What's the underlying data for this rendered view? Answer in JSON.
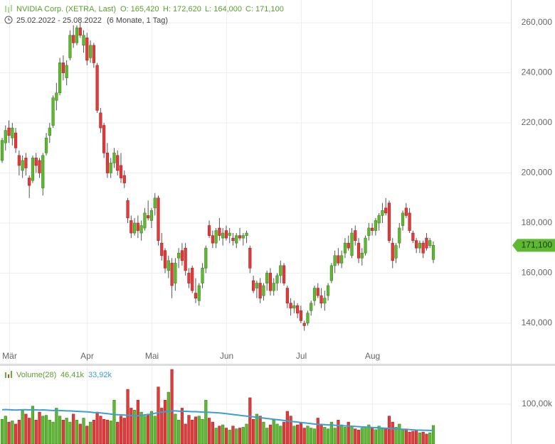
{
  "chart_data": {
    "type": "candlestick",
    "title": "NVIDIA Corp. (XETRA, Last)",
    "ohlc_summary": [
      "O: 165,420",
      "H: 172,620",
      "L: 164,000",
      "C: 171,100"
    ],
    "date_range": "25.02.2022 - 25.08.2022",
    "period": "(6 Monate, 1 Tag)",
    "last_price_label": "171,100",
    "up_color": "#5fb832",
    "down_color": "#e23b3b",
    "grid": true,
    "ylim": [
      123800,
      269100
    ],
    "yticks": [
      {
        "value": 140000,
        "label": "140,000"
      },
      {
        "value": 160000,
        "label": "160,000"
      },
      {
        "value": 180000,
        "label": "180,000"
      },
      {
        "value": 200000,
        "label": "200,000"
      },
      {
        "value": 220000,
        "label": "220,000"
      },
      {
        "value": 240000,
        "label": "240,000"
      },
      {
        "value": 260000,
        "label": "260,000"
      }
    ],
    "categories": [
      null,
      null,
      "Mär",
      null,
      null,
      null,
      null,
      null,
      null,
      null,
      null,
      null,
      null,
      null,
      null,
      null,
      null,
      null,
      null,
      null,
      null,
      null,
      null,
      null,
      null,
      "Apr",
      null,
      null,
      null,
      null,
      null,
      null,
      null,
      null,
      null,
      null,
      null,
      null,
      null,
      null,
      null,
      null,
      null,
      null,
      "Mai",
      null,
      null,
      null,
      null,
      null,
      null,
      null,
      null,
      null,
      null,
      null,
      null,
      null,
      null,
      null,
      null,
      null,
      null,
      null,
      null,
      null,
      "Jun",
      null,
      null,
      null,
      null,
      null,
      null,
      null,
      null,
      null,
      null,
      null,
      null,
      null,
      null,
      null,
      null,
      null,
      null,
      null,
      null,
      null,
      "Jul",
      null,
      null,
      null,
      null,
      null,
      null,
      null,
      null,
      null,
      null,
      null,
      null,
      null,
      null,
      null,
      null,
      null,
      null,
      null,
      null,
      "Aug",
      null,
      null,
      null,
      null,
      null,
      null,
      null,
      null,
      null,
      null,
      null,
      null,
      null,
      null,
      null,
      null,
      null
    ],
    "ohlc": [
      [
        205000,
        214000,
        204000,
        213000
      ],
      [
        212000,
        219000,
        209000,
        217000
      ],
      [
        218000,
        221000,
        212000,
        215000
      ],
      [
        214000,
        220000,
        211000,
        218000
      ],
      [
        216000,
        218000,
        208000,
        210000
      ],
      [
        207000,
        209000,
        199000,
        203000
      ],
      [
        201000,
        207000,
        198000,
        205000
      ],
      [
        206000,
        208000,
        199000,
        202000
      ],
      [
        198000,
        199000,
        190000,
        195000
      ],
      [
        197000,
        207000,
        196000,
        206000
      ],
      [
        206000,
        208000,
        200000,
        203000
      ],
      [
        205000,
        206000,
        198000,
        200000
      ],
      [
        194000,
        208000,
        191000,
        207000
      ],
      [
        208000,
        216000,
        207000,
        214000
      ],
      [
        215000,
        220000,
        212000,
        218000
      ],
      [
        219000,
        231000,
        218000,
        230000
      ],
      [
        229000,
        236000,
        225000,
        232000
      ],
      [
        232000,
        246000,
        231000,
        244000
      ],
      [
        244000,
        247000,
        237000,
        240000
      ],
      [
        238000,
        245000,
        235000,
        243000
      ],
      [
        246000,
        257000,
        245000,
        255000
      ],
      [
        255000,
        259000,
        250000,
        252000
      ],
      [
        252000,
        259000,
        251000,
        258000
      ],
      [
        258000,
        260000,
        254000,
        255000
      ],
      [
        251000,
        257000,
        248000,
        255000
      ],
      [
        254000,
        256000,
        243000,
        245000
      ],
      [
        246000,
        253000,
        244000,
        251000
      ],
      [
        251000,
        252000,
        242000,
        244000
      ],
      [
        243000,
        244000,
        224000,
        225000
      ],
      [
        224000,
        226000,
        216000,
        218000
      ],
      [
        219000,
        220000,
        206000,
        208000
      ],
      [
        208000,
        212000,
        198000,
        200000
      ],
      [
        200000,
        206000,
        198000,
        204000
      ],
      [
        204000,
        210000,
        202000,
        208000
      ],
      [
        207000,
        209000,
        199000,
        201000
      ],
      [
        203000,
        208000,
        196000,
        198000
      ],
      [
        199000,
        201000,
        194000,
        196000
      ],
      [
        189000,
        190000,
        180000,
        182000
      ],
      [
        181000,
        183000,
        174000,
        176000
      ],
      [
        176000,
        182000,
        175000,
        180000
      ],
      [
        180000,
        183000,
        174000,
        177000
      ],
      [
        176000,
        181000,
        173000,
        179000
      ],
      [
        178000,
        186000,
        177000,
        184000
      ],
      [
        183000,
        189000,
        181000,
        182000
      ],
      [
        181000,
        186000,
        178000,
        185000
      ],
      [
        186000,
        192000,
        183000,
        190000
      ],
      [
        190000,
        191000,
        171000,
        173000
      ],
      [
        172000,
        176000,
        165000,
        167000
      ],
      [
        169000,
        170000,
        160000,
        162000
      ],
      [
        161000,
        167000,
        158000,
        165000
      ],
      [
        164000,
        166000,
        150000,
        155000
      ],
      [
        156000,
        166000,
        153000,
        164000
      ],
      [
        166000,
        170000,
        162000,
        168000
      ],
      [
        169000,
        172000,
        163000,
        165000
      ],
      [
        170000,
        172000,
        159000,
        161000
      ],
      [
        160000,
        162000,
        154000,
        156000
      ],
      [
        162000,
        163000,
        152000,
        153000
      ],
      [
        152000,
        158000,
        148000,
        150000
      ],
      [
        149000,
        156000,
        147000,
        155000
      ],
      [
        156000,
        164000,
        154000,
        162000
      ],
      [
        162000,
        171000,
        160000,
        170000
      ],
      [
        179000,
        181000,
        174000,
        175000
      ],
      [
        175000,
        177000,
        170000,
        172000
      ],
      [
        172000,
        178000,
        170000,
        177000
      ],
      [
        178000,
        182000,
        173000,
        175000
      ],
      [
        174000,
        178000,
        171000,
        176000
      ],
      [
        177000,
        179000,
        173000,
        174000
      ],
      [
        175000,
        178000,
        172000,
        176000
      ],
      [
        174000,
        176000,
        171000,
        173000
      ],
      [
        172000,
        176000,
        170000,
        175000
      ],
      [
        175000,
        178000,
        173000,
        174000
      ],
      [
        174000,
        176000,
        171000,
        175000
      ],
      [
        175000,
        177000,
        172000,
        176000
      ],
      [
        170000,
        171000,
        160000,
        162000
      ],
      [
        157000,
        159000,
        152000,
        153000
      ],
      [
        154000,
        157000,
        150000,
        156000
      ],
      [
        156000,
        158000,
        148000,
        150000
      ],
      [
        151000,
        156000,
        149000,
        155000
      ],
      [
        156000,
        161000,
        153000,
        160000
      ],
      [
        160000,
        162000,
        151000,
        153000
      ],
      [
        153000,
        158000,
        151000,
        156000
      ],
      [
        156000,
        160000,
        153000,
        159000
      ],
      [
        159000,
        165000,
        156000,
        163000
      ],
      [
        163000,
        164000,
        155000,
        156000
      ],
      [
        154000,
        155000,
        146000,
        148000
      ],
      [
        148000,
        150000,
        143000,
        146000
      ],
      [
        146000,
        149000,
        144000,
        147000
      ],
      [
        147000,
        148000,
        142000,
        144000
      ],
      [
        145000,
        147000,
        140000,
        141000
      ],
      [
        140000,
        141000,
        137000,
        139000
      ],
      [
        140000,
        145000,
        139000,
        144000
      ],
      [
        145000,
        149000,
        143000,
        148000
      ],
      [
        149000,
        155000,
        147000,
        154000
      ],
      [
        154000,
        156000,
        150000,
        151000
      ],
      [
        151000,
        154000,
        146000,
        148000
      ],
      [
        148000,
        153000,
        145000,
        150000
      ],
      [
        151000,
        156000,
        149000,
        155000
      ],
      [
        157000,
        164000,
        156000,
        163000
      ],
      [
        163000,
        169000,
        160000,
        167000
      ],
      [
        167000,
        170000,
        163000,
        164000
      ],
      [
        164000,
        169000,
        162000,
        167000
      ],
      [
        168000,
        174000,
        166000,
        172000
      ],
      [
        172000,
        175000,
        169000,
        170000
      ],
      [
        167000,
        178000,
        166000,
        176000
      ],
      [
        177000,
        179000,
        171000,
        173000
      ],
      [
        172000,
        174000,
        164000,
        166000
      ],
      [
        166000,
        170000,
        163000,
        168000
      ],
      [
        168000,
        175000,
        167000,
        174000
      ],
      [
        175000,
        180000,
        173000,
        178000
      ],
      [
        178000,
        180000,
        175000,
        177000
      ],
      [
        177000,
        182000,
        175000,
        181000
      ],
      [
        180000,
        184000,
        177000,
        183000
      ],
      [
        183000,
        188000,
        180000,
        185000
      ],
      [
        186000,
        190000,
        183000,
        184000
      ],
      [
        188000,
        189000,
        172000,
        173000
      ],
      [
        172000,
        174000,
        162000,
        165000
      ],
      [
        166000,
        172000,
        164000,
        171000
      ],
      [
        172000,
        180000,
        170000,
        178000
      ],
      [
        179000,
        185000,
        177000,
        184000
      ],
      [
        186000,
        188000,
        182000,
        183000
      ],
      [
        184000,
        186000,
        176000,
        177000
      ],
      [
        176000,
        177000,
        172000,
        173000
      ],
      [
        173000,
        174000,
        168000,
        170000
      ],
      [
        170000,
        173000,
        168000,
        172000
      ],
      [
        172000,
        173000,
        166000,
        168000
      ],
      [
        174000,
        176000,
        169000,
        170000
      ],
      [
        171000,
        174000,
        170000,
        173000
      ],
      [
        165420,
        172620,
        164000,
        171100
      ]
    ],
    "volume": {
      "name": "Volume(28)",
      "last_label": "46,41k",
      "average_label": "33,92k",
      "average_color": "#3aa0d0",
      "ylim": [
        0,
        196000
      ],
      "yticks": [
        {
          "value": 100000,
          "label": "100,00k"
        }
      ],
      "values": [
        62000,
        70000,
        55000,
        58000,
        50000,
        60000,
        85000,
        75000,
        65000,
        95000,
        60000,
        80000,
        70000,
        72000,
        60000,
        55000,
        90000,
        70000,
        60000,
        65000,
        55000,
        75000,
        60000,
        50000,
        65000,
        45000,
        55000,
        60000,
        80000,
        70000,
        62000,
        60000,
        58000,
        110000,
        55000,
        70000,
        65000,
        137000,
        90000,
        85000,
        110000,
        80000,
        70000,
        75000,
        82000,
        70000,
        143000,
        90000,
        110000,
        130000,
        187000,
        75000,
        60000,
        90000,
        50000,
        72000,
        60000,
        68000,
        70000,
        62000,
        110000,
        65000,
        55000,
        40000,
        45000,
        48000,
        40000,
        35000,
        45000,
        38000,
        40000,
        42000,
        50000,
        116000,
        62000,
        75000,
        70000,
        55000,
        40000,
        48000,
        60000,
        50000,
        45000,
        55000,
        82000,
        70000,
        45000,
        48000,
        52000,
        40000,
        45000,
        40000,
        38000,
        65000,
        50000,
        42000,
        38000,
        55000,
        40000,
        60000,
        48000,
        42000,
        55000,
        45000,
        38000,
        35000,
        40000,
        42000,
        48000,
        40000,
        36000,
        45000,
        38000,
        40000,
        70000,
        55000,
        42000,
        50000,
        35000,
        38000,
        30000,
        32000,
        35000,
        28000,
        30000,
        25000,
        28000,
        46410
      ],
      "average": [
        86000,
        86500,
        86000,
        85500,
        85000,
        85500,
        86000,
        86000,
        85500,
        86000,
        85500,
        85000,
        85500,
        85000,
        84500,
        84000,
        84500,
        84000,
        83500,
        83000,
        83000,
        82500,
        82000,
        81500,
        81000,
        80500,
        80000,
        79000,
        78500,
        78000,
        77000,
        76000,
        75000,
        74000,
        73500,
        73000,
        72500,
        72000,
        71500,
        71000,
        71000,
        72000,
        73000,
        74000,
        75000,
        77000,
        79000,
        80000,
        81000,
        82000,
        83000,
        83000,
        82500,
        82000,
        82000,
        81500,
        81000,
        81000,
        80500,
        80000,
        80000,
        79500,
        79000,
        78500,
        78000,
        77000,
        76000,
        75000,
        74000,
        73000,
        72000,
        71000,
        70000,
        69000,
        68000,
        67000,
        66000,
        65000,
        64000,
        63000,
        62000,
        61000,
        60000,
        59000,
        58000,
        57000,
        56000,
        55000,
        54000,
        53000,
        52000,
        51000,
        50000,
        49500,
        49000,
        48500,
        48000,
        47500,
        47000,
        46500,
        46000,
        45500,
        45000,
        44500,
        44000,
        43500,
        43000,
        42500,
        42000,
        41500,
        41000,
        40500,
        40000,
        39500,
        39000,
        38500,
        38000,
        37500,
        37000,
        36500,
        36000,
        35500,
        35000,
        34800,
        34500,
        34300,
        34100,
        33920
      ]
    }
  }
}
